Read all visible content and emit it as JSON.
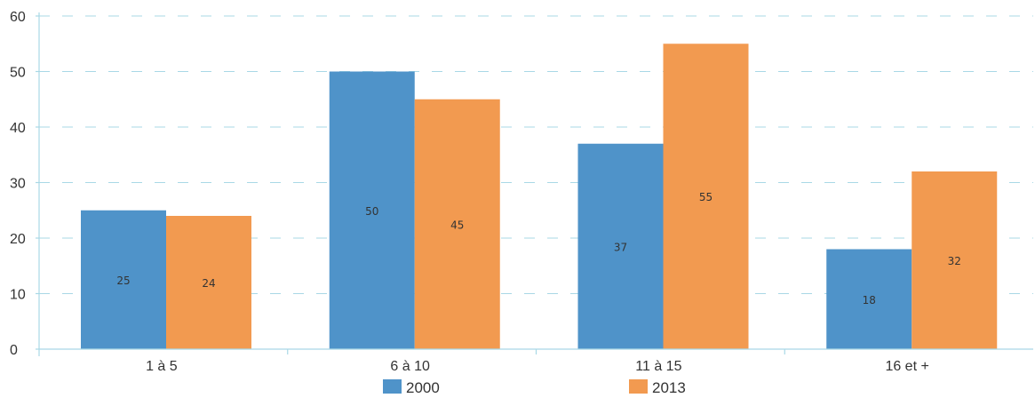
{
  "chart_data": {
    "type": "bar",
    "categories": [
      "1 à 5",
      "6 à 10",
      "11 à 15",
      "16 et +"
    ],
    "series": [
      {
        "name": "2000",
        "values": [
          25,
          50,
          37,
          18
        ],
        "color": "#4f93c9"
      },
      {
        "name": "2013",
        "values": [
          24,
          45,
          55,
          32
        ],
        "color": "#f29a50"
      }
    ],
    "yticks": [
      0,
      10,
      20,
      30,
      40,
      50,
      60
    ],
    "ylim": [
      0,
      60
    ],
    "grid": true,
    "legend_position": "bottom",
    "title": "",
    "xlabel": "",
    "ylabel": ""
  }
}
